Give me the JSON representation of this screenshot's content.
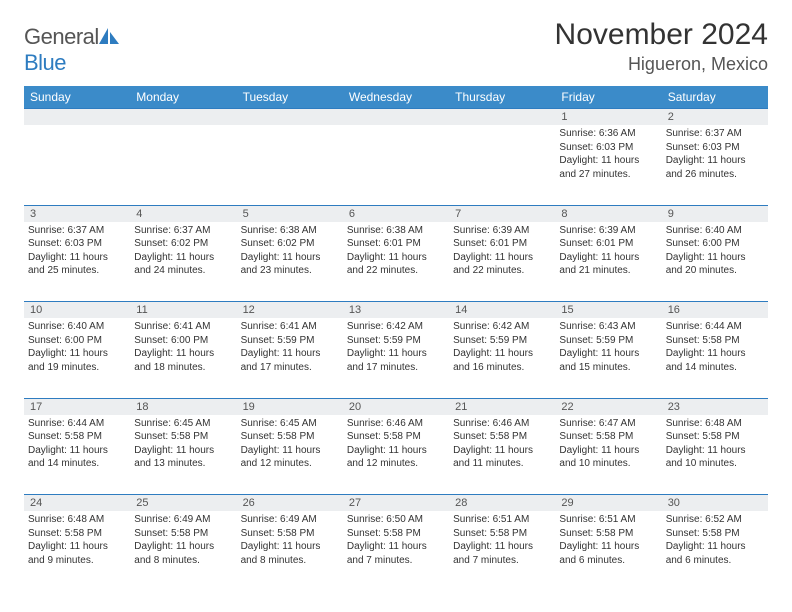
{
  "logo": {
    "text_general": "General",
    "text_blue": "Blue"
  },
  "title": "November 2024",
  "location": "Higueron, Mexico",
  "colors": {
    "header_bg": "#3b8bc9",
    "header_text": "#ffffff",
    "daynum_bg": "#eceef0",
    "border": "#2e7cc0",
    "body_text": "#333333"
  },
  "weekdays": [
    "Sunday",
    "Monday",
    "Tuesday",
    "Wednesday",
    "Thursday",
    "Friday",
    "Saturday"
  ],
  "weeks": [
    [
      null,
      null,
      null,
      null,
      null,
      {
        "n": "1",
        "sr": "Sunrise: 6:36 AM",
        "ss": "Sunset: 6:03 PM",
        "dl": "Daylight: 11 hours and 27 minutes."
      },
      {
        "n": "2",
        "sr": "Sunrise: 6:37 AM",
        "ss": "Sunset: 6:03 PM",
        "dl": "Daylight: 11 hours and 26 minutes."
      }
    ],
    [
      {
        "n": "3",
        "sr": "Sunrise: 6:37 AM",
        "ss": "Sunset: 6:03 PM",
        "dl": "Daylight: 11 hours and 25 minutes."
      },
      {
        "n": "4",
        "sr": "Sunrise: 6:37 AM",
        "ss": "Sunset: 6:02 PM",
        "dl": "Daylight: 11 hours and 24 minutes."
      },
      {
        "n": "5",
        "sr": "Sunrise: 6:38 AM",
        "ss": "Sunset: 6:02 PM",
        "dl": "Daylight: 11 hours and 23 minutes."
      },
      {
        "n": "6",
        "sr": "Sunrise: 6:38 AM",
        "ss": "Sunset: 6:01 PM",
        "dl": "Daylight: 11 hours and 22 minutes."
      },
      {
        "n": "7",
        "sr": "Sunrise: 6:39 AM",
        "ss": "Sunset: 6:01 PM",
        "dl": "Daylight: 11 hours and 22 minutes."
      },
      {
        "n": "8",
        "sr": "Sunrise: 6:39 AM",
        "ss": "Sunset: 6:01 PM",
        "dl": "Daylight: 11 hours and 21 minutes."
      },
      {
        "n": "9",
        "sr": "Sunrise: 6:40 AM",
        "ss": "Sunset: 6:00 PM",
        "dl": "Daylight: 11 hours and 20 minutes."
      }
    ],
    [
      {
        "n": "10",
        "sr": "Sunrise: 6:40 AM",
        "ss": "Sunset: 6:00 PM",
        "dl": "Daylight: 11 hours and 19 minutes."
      },
      {
        "n": "11",
        "sr": "Sunrise: 6:41 AM",
        "ss": "Sunset: 6:00 PM",
        "dl": "Daylight: 11 hours and 18 minutes."
      },
      {
        "n": "12",
        "sr": "Sunrise: 6:41 AM",
        "ss": "Sunset: 5:59 PM",
        "dl": "Daylight: 11 hours and 17 minutes."
      },
      {
        "n": "13",
        "sr": "Sunrise: 6:42 AM",
        "ss": "Sunset: 5:59 PM",
        "dl": "Daylight: 11 hours and 17 minutes."
      },
      {
        "n": "14",
        "sr": "Sunrise: 6:42 AM",
        "ss": "Sunset: 5:59 PM",
        "dl": "Daylight: 11 hours and 16 minutes."
      },
      {
        "n": "15",
        "sr": "Sunrise: 6:43 AM",
        "ss": "Sunset: 5:59 PM",
        "dl": "Daylight: 11 hours and 15 minutes."
      },
      {
        "n": "16",
        "sr": "Sunrise: 6:44 AM",
        "ss": "Sunset: 5:58 PM",
        "dl": "Daylight: 11 hours and 14 minutes."
      }
    ],
    [
      {
        "n": "17",
        "sr": "Sunrise: 6:44 AM",
        "ss": "Sunset: 5:58 PM",
        "dl": "Daylight: 11 hours and 14 minutes."
      },
      {
        "n": "18",
        "sr": "Sunrise: 6:45 AM",
        "ss": "Sunset: 5:58 PM",
        "dl": "Daylight: 11 hours and 13 minutes."
      },
      {
        "n": "19",
        "sr": "Sunrise: 6:45 AM",
        "ss": "Sunset: 5:58 PM",
        "dl": "Daylight: 11 hours and 12 minutes."
      },
      {
        "n": "20",
        "sr": "Sunrise: 6:46 AM",
        "ss": "Sunset: 5:58 PM",
        "dl": "Daylight: 11 hours and 12 minutes."
      },
      {
        "n": "21",
        "sr": "Sunrise: 6:46 AM",
        "ss": "Sunset: 5:58 PM",
        "dl": "Daylight: 11 hours and 11 minutes."
      },
      {
        "n": "22",
        "sr": "Sunrise: 6:47 AM",
        "ss": "Sunset: 5:58 PM",
        "dl": "Daylight: 11 hours and 10 minutes."
      },
      {
        "n": "23",
        "sr": "Sunrise: 6:48 AM",
        "ss": "Sunset: 5:58 PM",
        "dl": "Daylight: 11 hours and 10 minutes."
      }
    ],
    [
      {
        "n": "24",
        "sr": "Sunrise: 6:48 AM",
        "ss": "Sunset: 5:58 PM",
        "dl": "Daylight: 11 hours and 9 minutes."
      },
      {
        "n": "25",
        "sr": "Sunrise: 6:49 AM",
        "ss": "Sunset: 5:58 PM",
        "dl": "Daylight: 11 hours and 8 minutes."
      },
      {
        "n": "26",
        "sr": "Sunrise: 6:49 AM",
        "ss": "Sunset: 5:58 PM",
        "dl": "Daylight: 11 hours and 8 minutes."
      },
      {
        "n": "27",
        "sr": "Sunrise: 6:50 AM",
        "ss": "Sunset: 5:58 PM",
        "dl": "Daylight: 11 hours and 7 minutes."
      },
      {
        "n": "28",
        "sr": "Sunrise: 6:51 AM",
        "ss": "Sunset: 5:58 PM",
        "dl": "Daylight: 11 hours and 7 minutes."
      },
      {
        "n": "29",
        "sr": "Sunrise: 6:51 AM",
        "ss": "Sunset: 5:58 PM",
        "dl": "Daylight: 11 hours and 6 minutes."
      },
      {
        "n": "30",
        "sr": "Sunrise: 6:52 AM",
        "ss": "Sunset: 5:58 PM",
        "dl": "Daylight: 11 hours and 6 minutes."
      }
    ]
  ]
}
